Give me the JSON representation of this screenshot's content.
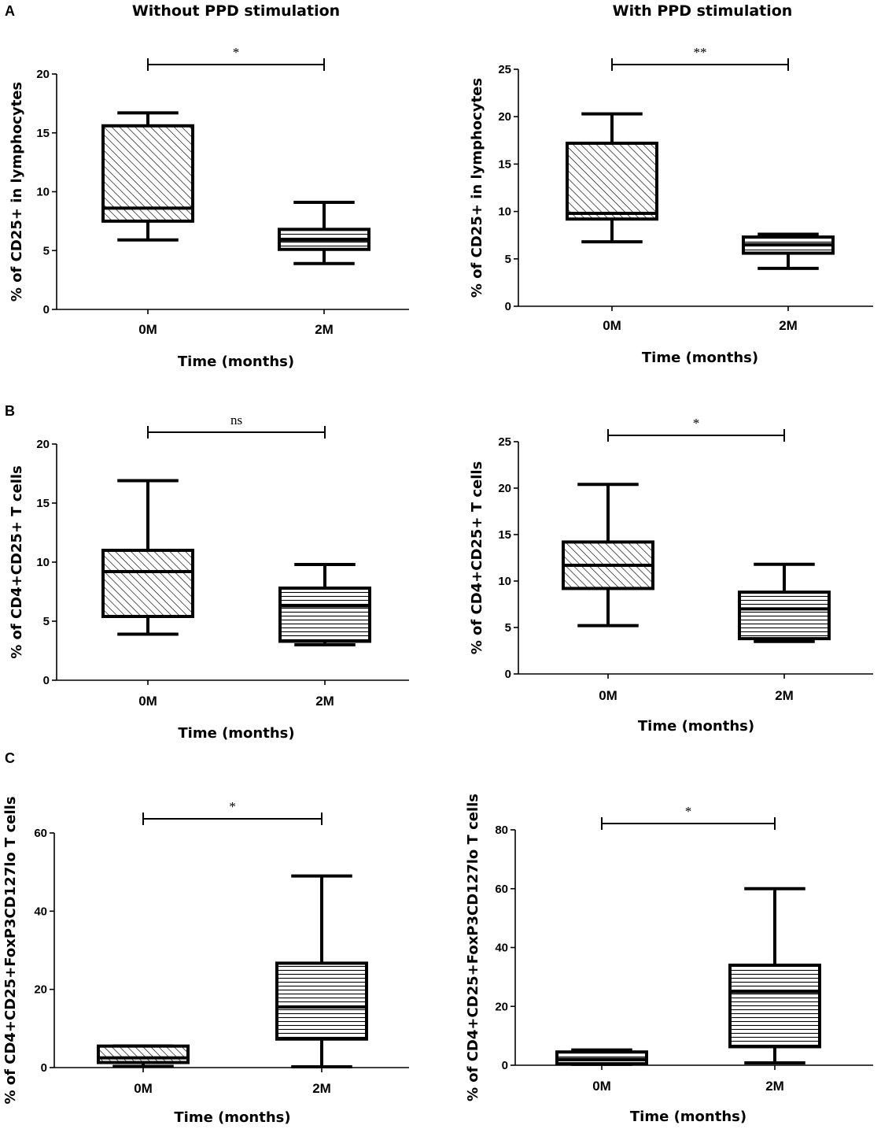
{
  "column_titles": {
    "left": "Without PPD stimulation",
    "right": "With PPD stimulation"
  },
  "panel_labels": {
    "A": "A",
    "B": "B",
    "C": "C"
  },
  "chart_data": [
    {
      "id": "A-left",
      "type": "boxplot",
      "panel": "A",
      "column": "Without PPD stimulation",
      "xlabel": "Time (months)",
      "ylabel": "% of CD25+ in lymphocytes",
      "ylim": [
        0,
        20
      ],
      "yticks": [
        0,
        5,
        10,
        15,
        20
      ],
      "ytick_labels": [
        "0",
        "5",
        "10",
        "15",
        "20"
      ],
      "categories": [
        "0M",
        "2M"
      ],
      "significance": "*",
      "boxes": [
        {
          "category": "0M",
          "min": 5.9,
          "q1": 7.5,
          "median": 8.6,
          "q3": 15.6,
          "max": 16.7,
          "pattern": "diagonal"
        },
        {
          "category": "2M",
          "min": 3.9,
          "q1": 5.1,
          "median": 5.9,
          "q3": 6.8,
          "max": 9.1,
          "pattern": "horizontal"
        }
      ]
    },
    {
      "id": "A-right",
      "type": "boxplot",
      "panel": "A",
      "column": "With PPD stimulation",
      "xlabel": "Time (months)",
      "ylabel": "% of CD25+ in lymphocytes",
      "ylim": [
        0,
        25
      ],
      "yticks": [
        0,
        5,
        10,
        15,
        20,
        25
      ],
      "ytick_labels": [
        "0",
        "5",
        "10",
        "15",
        "20",
        "25"
      ],
      "categories": [
        "0M",
        "2M"
      ],
      "significance": "**",
      "boxes": [
        {
          "category": "0M",
          "min": 6.8,
          "q1": 9.2,
          "median": 9.8,
          "q3": 17.2,
          "max": 20.3,
          "pattern": "diagonal"
        },
        {
          "category": "2M",
          "min": 4.0,
          "q1": 5.6,
          "median": 6.5,
          "q3": 7.3,
          "max": 7.6,
          "pattern": "horizontal"
        }
      ]
    },
    {
      "id": "B-left",
      "type": "boxplot",
      "panel": "B",
      "column": "Without PPD stimulation",
      "xlabel": "Time (months)",
      "ylabel": "% of CD4+CD25+ T cells",
      "ylim": [
        0,
        20
      ],
      "yticks": [
        0,
        5,
        10,
        15,
        20
      ],
      "ytick_labels": [
        "0",
        "5",
        "10",
        "15",
        "20"
      ],
      "categories": [
        "0M",
        "2M"
      ],
      "significance": "ns",
      "boxes": [
        {
          "category": "0M",
          "min": 3.9,
          "q1": 5.4,
          "median": 9.2,
          "q3": 11.0,
          "max": 16.9,
          "pattern": "diagonal"
        },
        {
          "category": "2M",
          "min": 3.0,
          "q1": 3.3,
          "median": 6.3,
          "q3": 7.8,
          "max": 9.8,
          "pattern": "horizontal"
        }
      ]
    },
    {
      "id": "B-right",
      "type": "boxplot",
      "panel": "B",
      "column": "With PPD stimulation",
      "xlabel": "Time (months)",
      "ylabel": "% of CD4+CD25+ T cells",
      "ylim": [
        0,
        25
      ],
      "yticks": [
        0,
        5,
        10,
        15,
        20,
        25
      ],
      "ytick_labels": [
        "0",
        "5",
        "10",
        "15",
        "20",
        "25"
      ],
      "categories": [
        "0M",
        "2M"
      ],
      "significance": "*",
      "boxes": [
        {
          "category": "0M",
          "min": 5.2,
          "q1": 9.2,
          "median": 11.7,
          "q3": 14.2,
          "max": 20.4,
          "pattern": "diagonal"
        },
        {
          "category": "2M",
          "min": 3.5,
          "q1": 3.8,
          "median": 7.0,
          "q3": 8.8,
          "max": 11.8,
          "pattern": "horizontal"
        }
      ]
    },
    {
      "id": "C-left",
      "type": "boxplot",
      "panel": "C",
      "column": "Without PPD stimulation",
      "xlabel": "Time (months)",
      "ylabel": "% of CD4+CD25+FoxP3CD127lo  T cells",
      "ylim": [
        0,
        60
      ],
      "yticks": [
        0,
        20,
        40,
        60
      ],
      "ytick_labels": [
        "0",
        "20",
        "40",
        "60"
      ],
      "categories": [
        "0M",
        "2M"
      ],
      "significance": "*",
      "boxes": [
        {
          "category": "0M",
          "min": 0.3,
          "q1": 1.3,
          "median": 2.5,
          "q3": 5.5,
          "max": 5.5,
          "pattern": "diagonal"
        },
        {
          "category": "2M",
          "min": 0.2,
          "q1": 7.3,
          "median": 15.5,
          "q3": 26.7,
          "max": 49.0,
          "pattern": "horizontal"
        }
      ]
    },
    {
      "id": "C-right",
      "type": "boxplot",
      "panel": "C",
      "column": "With PPD stimulation",
      "xlabel": "Time (months)",
      "ylabel": "% of CD4+CD25+FoxP3CD127lo  T cells",
      "ylim": [
        0,
        80
      ],
      "yticks": [
        0,
        20,
        40,
        60,
        80
      ],
      "ytick_labels": [
        "0",
        "20",
        "40",
        "60",
        "80"
      ],
      "categories": [
        "0M",
        "2M"
      ],
      "significance": "*",
      "boxes": [
        {
          "category": "0M",
          "min": 0.3,
          "q1": 0.5,
          "median": 2.0,
          "q3": 4.5,
          "max": 5.2,
          "pattern": "horizontal"
        },
        {
          "category": "2M",
          "min": 0.8,
          "q1": 6.3,
          "median": 25.0,
          "q3": 34.0,
          "max": 60.0,
          "pattern": "horizontal"
        }
      ]
    }
  ]
}
